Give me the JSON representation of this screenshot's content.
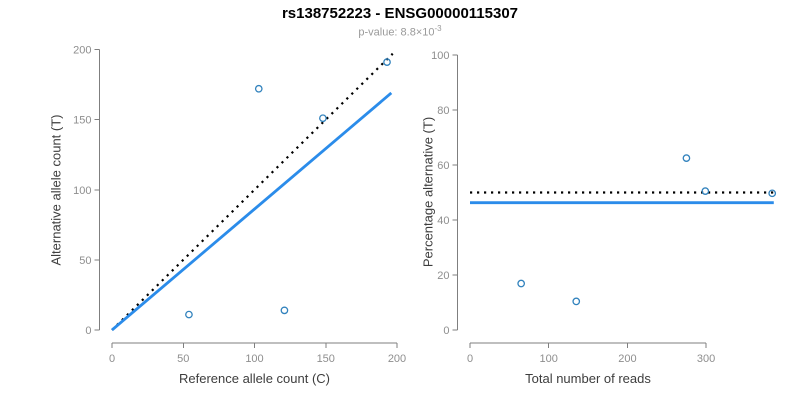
{
  "title": "rs138752223 - ENSG00000115307",
  "subtitle": {
    "prefix": "p-value: 8.8×10",
    "exponent": "-3"
  },
  "colors": {
    "title": "#000000",
    "subtitle": "#9a9a9a",
    "axis_line": "#7f7f7f",
    "tick_label": "#8e8e8e",
    "axis_title": "#3d3d3d",
    "point": "#3182BD",
    "fit_line": "#2B8CEA",
    "reference_line": "#000000"
  },
  "chart_data": [
    {
      "type": "scatter",
      "id": "allele-counts",
      "title": "",
      "xlabel": "Reference allele count (C)",
      "ylabel": "Alternative allele count (T)",
      "xlim": [
        0,
        200
      ],
      "ylim": [
        0,
        200
      ],
      "xticks": [
        0,
        50,
        100,
        150,
        200
      ],
      "yticks": [
        0,
        50,
        100,
        150,
        200
      ],
      "grid": false,
      "legend": "none",
      "point_style": "open-circle",
      "points": [
        [
          54,
          11
        ],
        [
          103,
          172
        ],
        [
          121,
          14
        ],
        [
          148,
          151
        ],
        [
          193,
          191
        ]
      ],
      "lines": [
        {
          "name": "identity-line",
          "meaning": "expected 1:1 ratio",
          "style": "dotted",
          "color": "#000000",
          "from": [
            0,
            0
          ],
          "to": [
            197,
            197
          ]
        },
        {
          "name": "fit-line",
          "meaning": "fitted allelic ratio",
          "style": "solid",
          "color": "#2B8CEA",
          "from": [
            0,
            0
          ],
          "to": [
            196,
            169
          ]
        }
      ]
    },
    {
      "type": "scatter",
      "id": "percentage-alternative",
      "title": "",
      "xlabel": "Total number of reads",
      "ylabel": "Percentage alternative (T)",
      "xlim": [
        0,
        390
      ],
      "ylim": [
        0,
        100
      ],
      "xticks": [
        0,
        100,
        200,
        300
      ],
      "yticks": [
        0,
        20,
        40,
        60,
        80,
        100
      ],
      "grid": false,
      "legend": "none",
      "point_style": "open-circle",
      "points": [
        [
          65,
          16.9
        ],
        [
          135,
          10.4
        ],
        [
          275,
          62.5
        ],
        [
          299,
          50.5
        ],
        [
          384,
          49.7
        ]
      ],
      "lines": [
        {
          "name": "null-50pct-line",
          "meaning": "50% expectation",
          "style": "dotted",
          "color": "#000000",
          "from": [
            0,
            50
          ],
          "to": [
            386,
            50
          ]
        },
        {
          "name": "fit-line",
          "meaning": "fitted percentage 46.3%",
          "style": "solid",
          "color": "#2B8CEA",
          "from": [
            0,
            46.3
          ],
          "to": [
            386,
            46.3
          ]
        }
      ]
    }
  ]
}
